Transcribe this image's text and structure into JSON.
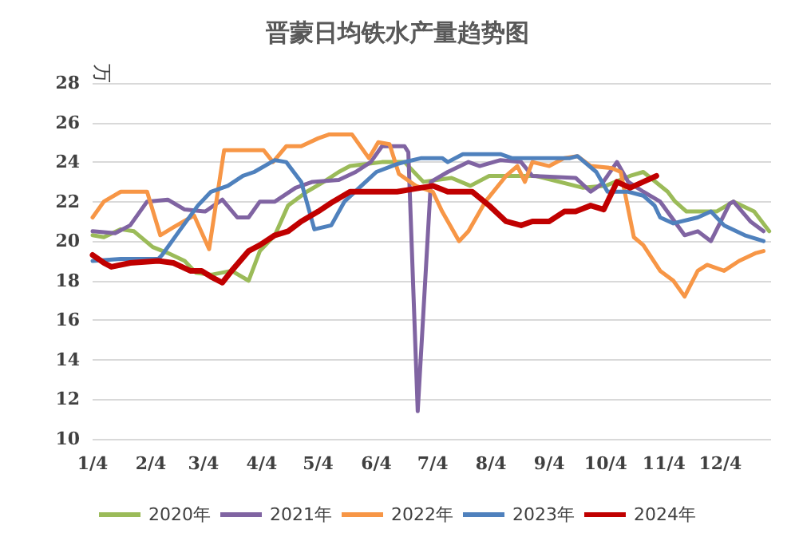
{
  "chart_data": {
    "type": "line",
    "title": "晋蒙日均铁水产量趋势图",
    "ylabel": "万",
    "xlim": [
      "--01-04",
      "--12-31"
    ],
    "xticks": [
      {
        "value": "--01-04",
        "label": "1/4"
      },
      {
        "value": "--02-04",
        "label": "2/4"
      },
      {
        "value": "--03-04",
        "label": "3/4"
      },
      {
        "value": "--04-04",
        "label": "4/4"
      },
      {
        "value": "--05-04",
        "label": "5/4"
      },
      {
        "value": "--06-04",
        "label": "6/4"
      },
      {
        "value": "--07-04",
        "label": "7/4"
      },
      {
        "value": "--08-04",
        "label": "8/4"
      },
      {
        "value": "--09-04",
        "label": "9/4"
      },
      {
        "value": "--10-04",
        "label": "10/4"
      },
      {
        "value": "--11-04",
        "label": "11/4"
      },
      {
        "value": "--12-04",
        "label": "12/4"
      }
    ],
    "ylim": [
      10,
      28
    ],
    "yticks": [
      10,
      12,
      14,
      16,
      18,
      20,
      22,
      24,
      26,
      28
    ],
    "grid": "y",
    "legend": "bottom",
    "marker": "none",
    "line_style": "solid",
    "series": [
      {
        "name": "2020年",
        "color": "#9bbb59",
        "x": [
          "--01-04",
          "--01-10",
          "--01-19",
          "--01-26",
          "--02-05",
          "--02-13",
          "--02-22",
          "--02-28",
          "--03-08",
          "--03-19",
          "--03-28",
          "--04-03",
          "--04-11",
          "--04-18",
          "--04-28",
          "--05-07",
          "--05-15",
          "--05-21",
          "--06-07",
          "--06-19",
          "--06-29",
          "--07-14",
          "--07-24",
          "--08-03",
          "--08-28",
          "--09-22",
          "--10-04",
          "--10-17",
          "--10-24",
          "--11-06",
          "--11-10",
          "--11-16",
          "--12-02",
          "--12-11",
          "--12-22",
          "--12-30"
        ],
        "values": [
          20.3,
          20.2,
          20.6,
          20.5,
          19.7,
          19.4,
          19.0,
          18.4,
          18.3,
          18.5,
          18.0,
          19.5,
          20.3,
          21.8,
          22.5,
          23.0,
          23.5,
          23.8,
          24.0,
          24.0,
          23.0,
          23.2,
          22.8,
          23.3,
          23.3,
          22.7,
          22.8,
          23.3,
          23.5,
          22.5,
          22.0,
          21.5,
          21.5,
          22.0,
          21.5,
          20.5
        ]
      },
      {
        "name": "2021年",
        "color": "#8064a2",
        "x": [
          "--01-04",
          "--01-16",
          "--01-24",
          "--02-02",
          "--02-13",
          "--02-22",
          "--03-05",
          "--03-14",
          "--03-22",
          "--03-28",
          "--04-03",
          "--04-11",
          "--04-22",
          "--05-01",
          "--05-15",
          "--05-24",
          "--06-01",
          "--06-07",
          "--06-19",
          "--06-21",
          "--06-26",
          "--07-03",
          "--07-12",
          "--07-23",
          "--07-29",
          "--08-09",
          "--08-20",
          "--08-26",
          "--09-18",
          "--09-26",
          "--10-02",
          "--10-10",
          "--10-16",
          "--10-24",
          "--11-02",
          "--11-15",
          "--11-22",
          "--11-29",
          "--12-09",
          "--12-11",
          "--12-20",
          "--12-27"
        ],
        "values": [
          20.5,
          20.4,
          20.8,
          22.0,
          22.1,
          21.6,
          21.5,
          22.1,
          21.2,
          21.2,
          22.0,
          22.0,
          22.7,
          23.0,
          23.1,
          23.5,
          24.0,
          24.8,
          24.8,
          24.5,
          11.4,
          23.0,
          23.5,
          24.0,
          23.8,
          24.1,
          24.0,
          23.3,
          23.2,
          22.5,
          22.9,
          24.0,
          23.0,
          22.5,
          22.0,
          20.3,
          20.5,
          20.0,
          21.9,
          22.0,
          21.0,
          20.5
        ]
      },
      {
        "name": "2022年",
        "color": "#f79646",
        "x": [
          "--01-04",
          "--01-10",
          "--01-19",
          "--01-30",
          "--02-02",
          "--02-09",
          "--02-16",
          "--02-27",
          "--03-07",
          "--03-15",
          "--03-28",
          "--04-05",
          "--04-10",
          "--04-17",
          "--04-25",
          "--05-04",
          "--05-10",
          "--05-22",
          "--05-31",
          "--06-05",
          "--06-11",
          "--06-16",
          "--06-25",
          "--07-04",
          "--07-09",
          "--07-18",
          "--07-23",
          "--08-01",
          "--08-12",
          "--08-18",
          "--08-22",
          "--08-26",
          "--09-04",
          "--09-12",
          "--09-19",
          "--09-26",
          "--10-07",
          "--10-12",
          "--10-19",
          "--10-24",
          "--11-02",
          "--11-09",
          "--11-15",
          "--11-22",
          "--11-27",
          "--12-06",
          "--12-14",
          "--12-23",
          "--12-27"
        ],
        "values": [
          21.2,
          22.0,
          22.5,
          22.5,
          22.5,
          20.3,
          20.7,
          21.3,
          19.6,
          24.6,
          24.6,
          24.6,
          24.0,
          24.8,
          24.8,
          25.2,
          25.4,
          25.4,
          24.2,
          25.0,
          24.9,
          23.4,
          22.8,
          22.5,
          21.5,
          20.0,
          20.5,
          22.0,
          23.3,
          23.8,
          23.0,
          24.0,
          23.8,
          24.2,
          24.3,
          23.8,
          23.7,
          23.5,
          20.2,
          19.8,
          18.5,
          18.0,
          17.2,
          18.5,
          18.8,
          18.5,
          19.0,
          19.4,
          19.5
        ]
      },
      {
        "name": "2023年",
        "color": "#4f81bd",
        "x": [
          "--01-04",
          "--01-19",
          "--02-08",
          "--02-10",
          "--02-19",
          "--03-01",
          "--03-08",
          "--03-17",
          "--03-25",
          "--03-31",
          "--04-11",
          "--04-17",
          "--04-25",
          "--05-02",
          "--05-11",
          "--05-18",
          "--05-27",
          "--06-04",
          "--06-15",
          "--06-19",
          "--06-28",
          "--07-09",
          "--07-12",
          "--07-20",
          "--08-09",
          "--08-15",
          "--09-15",
          "--09-19",
          "--09-29",
          "--10-05",
          "--10-16",
          "--10-24",
          "--10-30",
          "--11-02",
          "--11-09",
          "--11-22",
          "--11-29",
          "--12-06",
          "--12-17",
          "--12-27"
        ],
        "values": [
          19.0,
          19.1,
          19.1,
          19.3,
          20.5,
          21.8,
          22.5,
          22.8,
          23.3,
          23.5,
          24.1,
          24.0,
          23.0,
          20.6,
          20.8,
          22.0,
          22.8,
          23.5,
          23.9,
          24.0,
          24.2,
          24.2,
          24.0,
          24.4,
          24.4,
          24.2,
          24.2,
          24.3,
          23.5,
          22.5,
          22.5,
          22.3,
          21.8,
          21.2,
          20.9,
          21.2,
          21.5,
          20.8,
          20.3,
          20.0
        ]
      },
      {
        "name": "2024年",
        "color": "#c00000",
        "x": [
          "--01-04",
          "--01-10",
          "--01-14",
          "--01-24",
          "--02-08",
          "--02-16",
          "--02-25",
          "--03-03",
          "--03-08",
          "--03-14",
          "--03-19",
          "--03-28",
          "--04-03",
          "--04-11",
          "--04-18",
          "--04-25",
          "--05-04",
          "--05-12",
          "--05-21",
          "--06-15",
          "--07-04",
          "--07-12",
          "--07-25",
          "--08-03",
          "--08-12",
          "--08-20",
          "--08-26",
          "--09-04",
          "--09-12",
          "--09-18",
          "--09-26",
          "--10-03",
          "--10-10",
          "--10-17",
          "--10-24",
          "--10-31"
        ],
        "values": [
          19.3,
          18.9,
          18.7,
          18.9,
          19.0,
          18.9,
          18.5,
          18.5,
          18.2,
          17.9,
          18.5,
          19.5,
          19.8,
          20.3,
          20.5,
          21.0,
          21.5,
          22.0,
          22.5,
          22.5,
          22.8,
          22.5,
          22.5,
          21.8,
          21.0,
          20.8,
          21.0,
          21.0,
          21.5,
          21.5,
          21.8,
          21.6,
          23.0,
          22.7,
          23.0,
          23.3
        ]
      }
    ]
  }
}
